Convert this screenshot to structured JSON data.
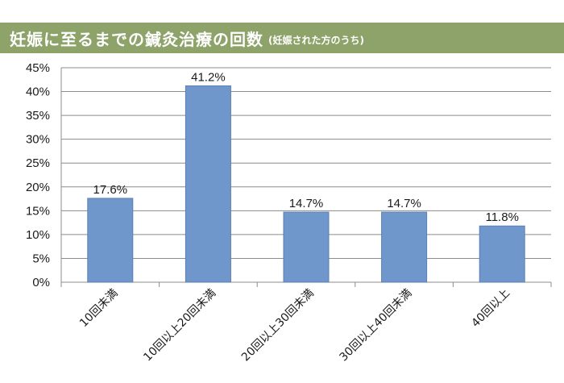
{
  "header": {
    "title": "妊娠に至るまでの鍼灸治療の回数",
    "subtitle": "(妊娠された方のうち)",
    "background_color": "#8ea36a"
  },
  "chart_data": {
    "type": "bar",
    "title": "妊娠に至るまでの鍼灸治療の回数",
    "subtitle": "(妊娠された方のうち)",
    "categories": [
      "10回未満",
      "10回以上20回未満",
      "20回以上30回未満",
      "30回以上40回未満",
      "40回以上"
    ],
    "values": [
      17.6,
      41.2,
      14.7,
      14.7,
      11.8
    ],
    "data_labels": [
      "17.6%",
      "41.2%",
      "14.7%",
      "14.7%",
      "11.8%"
    ],
    "y_ticks": [
      "0%",
      "5%",
      "10%",
      "15%",
      "20%",
      "25%",
      "30%",
      "35%",
      "40%",
      "45%"
    ],
    "ylim": [
      0,
      45
    ],
    "y_tick_step": 5,
    "grid": true,
    "bar_color": "#7097cc",
    "bar_edge_color": "#5a7fb3",
    "grid_color": "#8c8c8c",
    "xlabel": "",
    "ylabel": ""
  }
}
